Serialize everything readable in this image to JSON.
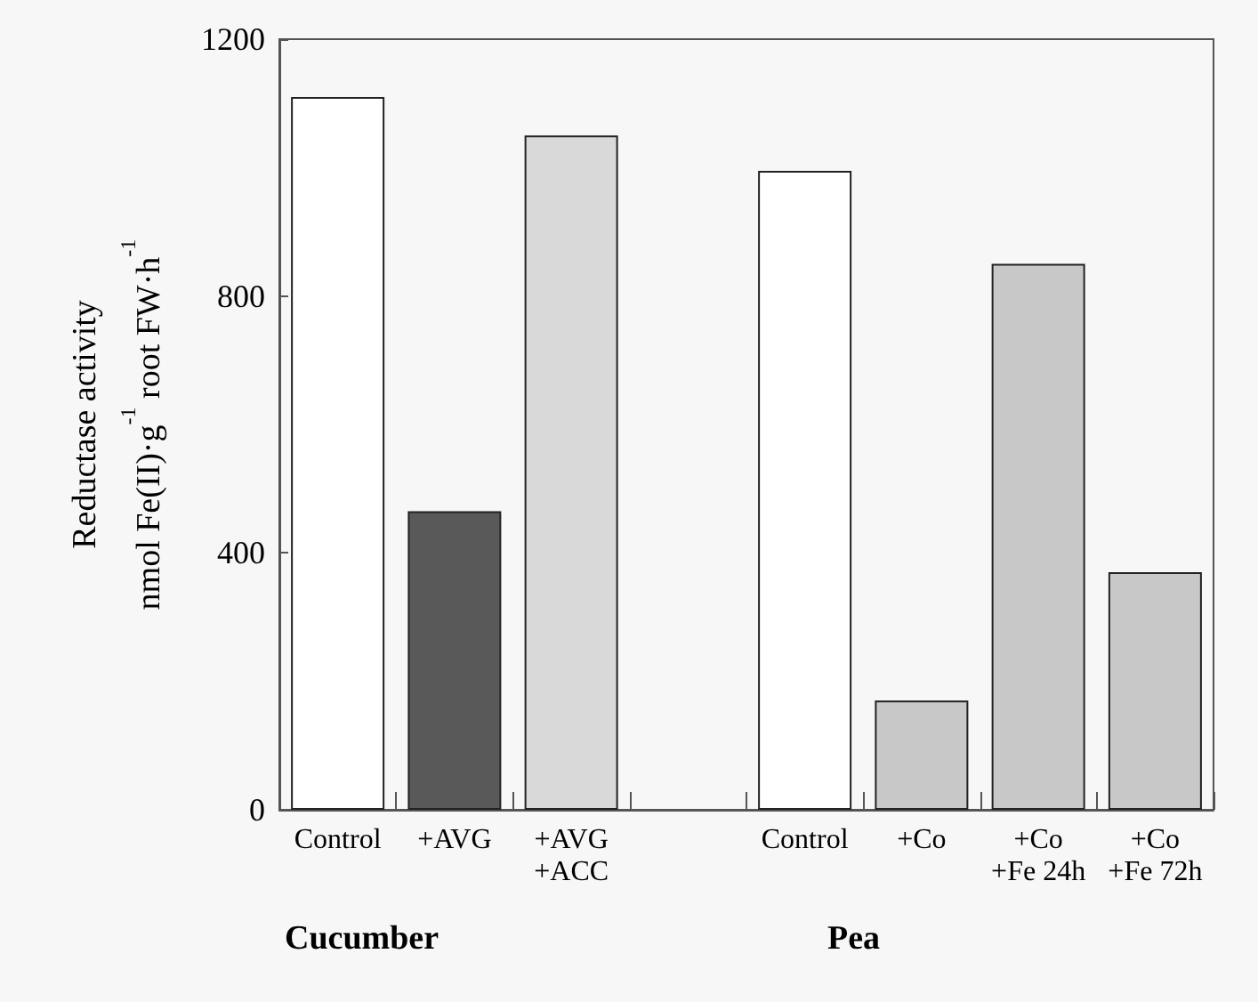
{
  "chart_data": {
    "type": "bar",
    "ylabel": "Reductase activity\nnmol Fe(II)·g$^{-1}$ root FW·h$^{-1}$",
    "categories": [
      "Control",
      "+AVG",
      "+AVG\n+ACC",
      null,
      "Control",
      "+Co",
      "+Co\n+Fe 24h",
      "+Co\n+Fe 72h"
    ],
    "values": [
      1110,
      465,
      1050,
      null,
      995,
      170,
      850,
      370
    ],
    "colors": [
      "#ffffff",
      "#595959",
      "#d9d9d9",
      "#ffffff",
      "#ffffff",
      "#c8c8c8",
      "#c8c8c8",
      "#c8c8c8"
    ],
    "ylim": [
      0,
      1200
    ],
    "yticks": [
      0,
      400,
      800,
      1200
    ],
    "annotations": [
      "Cucumber",
      "Pea"
    ],
    "grid": false
  }
}
